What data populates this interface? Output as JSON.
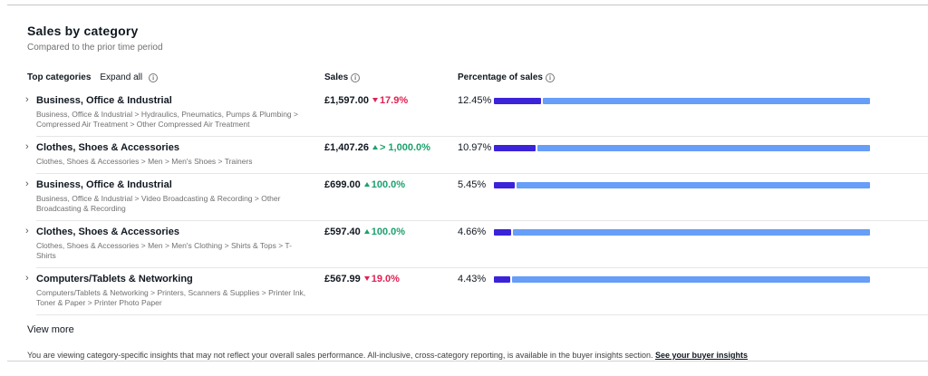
{
  "panel": {
    "title": "Sales by category",
    "subtitle": "Compared to the prior time period",
    "columns": {
      "top_categories": "Top categories",
      "expand_all": "Expand all",
      "sales": "Sales",
      "percentage_of_sales": "Percentage of sales"
    },
    "rows": [
      {
        "category": "Business, Office & Industrial",
        "breadcrumb": "Business, Office & Industrial > Hydraulics, Pneumatics, Pumps & Plumbing > Compressed Air Treatment > Other Compressed Air Treatment",
        "sales": "£1,597.00",
        "change": "17.9%",
        "direction": "down",
        "percentage": "12.45%",
        "bar_fill": 12.45
      },
      {
        "category": "Clothes, Shoes & Accessories",
        "breadcrumb": "Clothes, Shoes & Accessories > Men > Men's Shoes > Trainers",
        "sales": "£1,407.26",
        "change": "> 1,000.0%",
        "direction": "up",
        "percentage": "10.97%",
        "bar_fill": 10.97
      },
      {
        "category": "Business, Office & Industrial",
        "breadcrumb": "Business, Office & Industrial > Video Broadcasting & Recording > Other Broadcasting & Recording",
        "sales": "£699.00",
        "change": "100.0%",
        "direction": "up",
        "percentage": "5.45%",
        "bar_fill": 5.45
      },
      {
        "category": "Clothes, Shoes & Accessories",
        "breadcrumb": "Clothes, Shoes & Accessories > Men > Men's Clothing > Shirts & Tops > T-Shirts",
        "sales": "£597.40",
        "change": "100.0%",
        "direction": "up",
        "percentage": "4.66%",
        "bar_fill": 4.66
      },
      {
        "category": "Computers/Tablets & Networking",
        "breadcrumb": "Computers/Tablets & Networking > Printers, Scanners & Supplies > Printer Ink, Toner & Paper > Printer Photo Paper",
        "sales": "£567.99",
        "change": "19.0%",
        "direction": "down",
        "percentage": "4.43%",
        "bar_fill": 4.43
      }
    ],
    "view_more": "View more",
    "footer_text": "You are viewing category-specific insights that may not reflect your overall sales performance. All-inclusive, cross-category reporting, is available in the buyer insights section. ",
    "footer_link": "See your buyer insights",
    "icons": {
      "info": "info-icon",
      "row_chevron": "chevron-right-icon",
      "up_arrow": "triangle-up-icon",
      "down_arrow": "triangle-down-icon"
    },
    "colors": {
      "bar_dark": "#3a23d9",
      "bar_light": "#669ef8",
      "up": "#1ca16d",
      "down": "#e02152"
    }
  }
}
